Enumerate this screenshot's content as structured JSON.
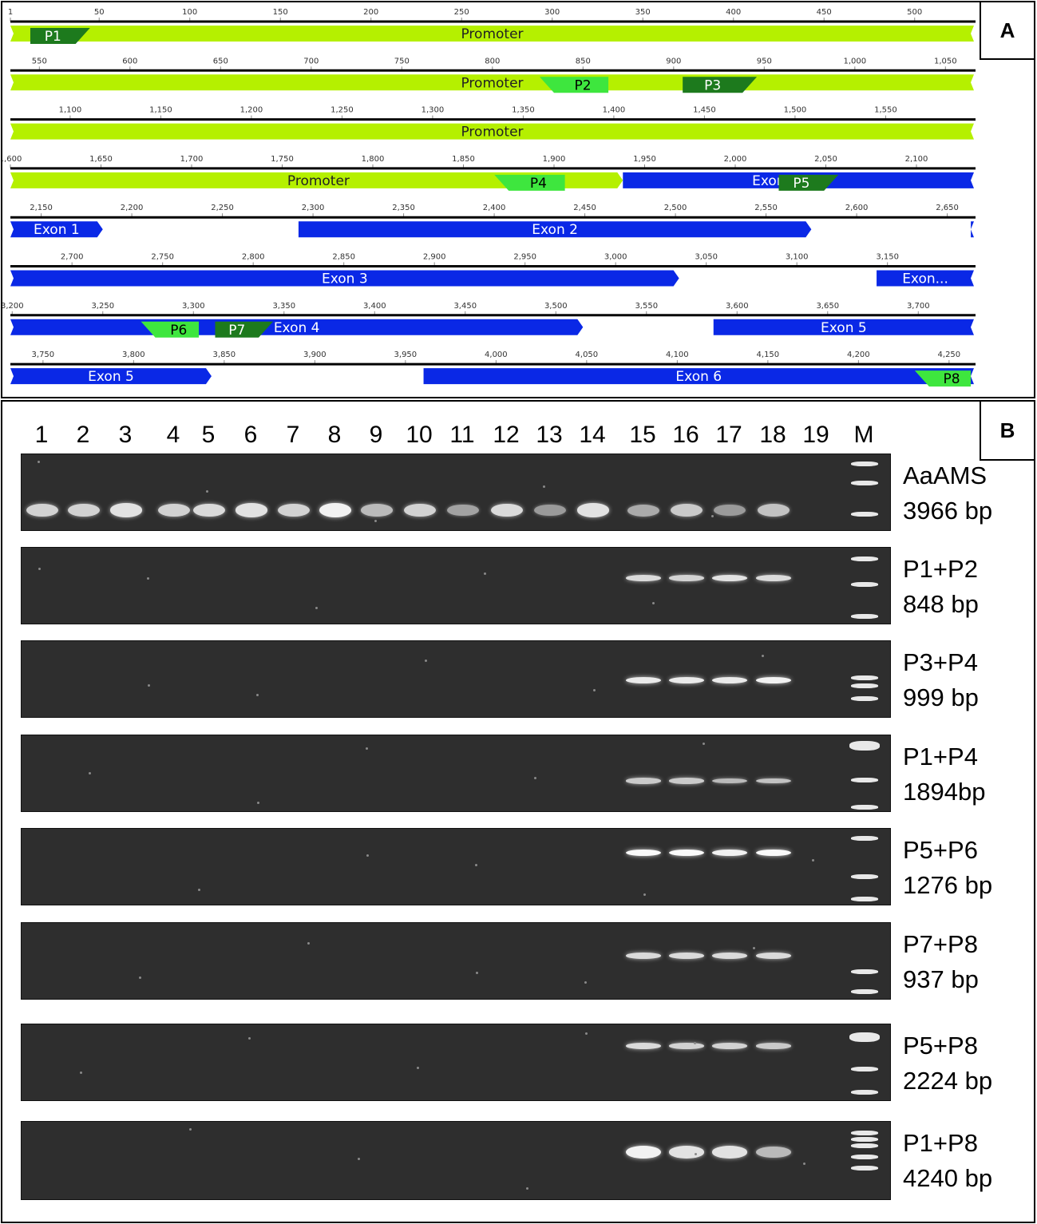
{
  "panel_a": {
    "letter": "A",
    "rows": [
      {
        "ticks": [
          {
            "v": 1,
            "t": "1"
          },
          {
            "v": 50,
            "t": "50"
          },
          {
            "v": 100,
            "t": "100"
          },
          {
            "v": 150,
            "t": "150"
          },
          {
            "v": 200,
            "t": "200"
          },
          {
            "v": 250,
            "t": "250"
          },
          {
            "v": 300,
            "t": "300"
          },
          {
            "v": 350,
            "t": "350"
          },
          {
            "v": 400,
            "t": "400"
          },
          {
            "v": 450,
            "t": "450"
          },
          {
            "v": 500,
            "t": "500"
          }
        ]
      },
      {
        "ticks": [
          {
            "v": 550,
            "t": "550"
          },
          {
            "v": 600,
            "t": "600"
          },
          {
            "v": 650,
            "t": "650"
          },
          {
            "v": 700,
            "t": "700"
          },
          {
            "v": 750,
            "t": "750"
          },
          {
            "v": 800,
            "t": "800"
          },
          {
            "v": 850,
            "t": "850"
          },
          {
            "v": 900,
            "t": "900"
          },
          {
            "v": 950,
            "t": "950"
          },
          {
            "v": 1000,
            "t": "1,000"
          },
          {
            "v": 1050,
            "t": "1,050"
          }
        ]
      },
      {
        "ticks": [
          {
            "v": 1100,
            "t": "1,100"
          },
          {
            "v": 1150,
            "t": "1,150"
          },
          {
            "v": 1200,
            "t": "1,200"
          },
          {
            "v": 1250,
            "t": "1,250"
          },
          {
            "v": 1300,
            "t": "1,300"
          },
          {
            "v": 1350,
            "t": "1,350"
          },
          {
            "v": 1400,
            "t": "1,400"
          },
          {
            "v": 1450,
            "t": "1,450"
          },
          {
            "v": 1500,
            "t": "1,500"
          },
          {
            "v": 1550,
            "t": "1,550"
          }
        ]
      },
      {
        "ticks": [
          {
            "v": 1600,
            "t": "1,600"
          },
          {
            "v": 1650,
            "t": "1,650"
          },
          {
            "v": 1700,
            "t": "1,700"
          },
          {
            "v": 1750,
            "t": "1,750"
          },
          {
            "v": 1800,
            "t": "1,800"
          },
          {
            "v": 1850,
            "t": "1,850"
          },
          {
            "v": 1900,
            "t": "1,900"
          },
          {
            "v": 1950,
            "t": "1,950"
          },
          {
            "v": 2000,
            "t": "2,000"
          },
          {
            "v": 2050,
            "t": "2,050"
          },
          {
            "v": 2100,
            "t": "2,100"
          }
        ]
      },
      {
        "ticks": [
          {
            "v": 2150,
            "t": "2,150"
          },
          {
            "v": 2200,
            "t": "2,200"
          },
          {
            "v": 2250,
            "t": "2,250"
          },
          {
            "v": 2300,
            "t": "2,300"
          },
          {
            "v": 2350,
            "t": "2,350"
          },
          {
            "v": 2400,
            "t": "2,400"
          },
          {
            "v": 2450,
            "t": "2,450"
          },
          {
            "v": 2500,
            "t": "2,500"
          },
          {
            "v": 2550,
            "t": "2,550"
          },
          {
            "v": 2600,
            "t": "2,600"
          },
          {
            "v": 2650,
            "t": "2,650"
          }
        ]
      },
      {
        "ticks": [
          {
            "v": 2700,
            "t": "2,700"
          },
          {
            "v": 2750,
            "t": "2,750"
          },
          {
            "v": 2800,
            "t": "2,800"
          },
          {
            "v": 2850,
            "t": "2,850"
          },
          {
            "v": 2900,
            "t": "2,900"
          },
          {
            "v": 2950,
            "t": "2,950"
          },
          {
            "v": 3000,
            "t": "3,000"
          },
          {
            "v": 3050,
            "t": "3,050"
          },
          {
            "v": 3100,
            "t": "3,100"
          },
          {
            "v": 3150,
            "t": "3,150"
          }
        ]
      },
      {
        "ticks": [
          {
            "v": 3200,
            "t": "3,200"
          },
          {
            "v": 3250,
            "t": "3,250"
          },
          {
            "v": 3300,
            "t": "3,300"
          },
          {
            "v": 3350,
            "t": "3,350"
          },
          {
            "v": 3400,
            "t": "3,400"
          },
          {
            "v": 3450,
            "t": "3,450"
          },
          {
            "v": 3500,
            "t": "3,500"
          },
          {
            "v": 3550,
            "t": "3,550"
          },
          {
            "v": 3600,
            "t": "3,600"
          },
          {
            "v": 3650,
            "t": "3,650"
          },
          {
            "v": 3700,
            "t": "3,700"
          }
        ]
      },
      {
        "ticks": [
          {
            "v": 3750,
            "t": "3,750"
          },
          {
            "v": 3800,
            "t": "3,800"
          },
          {
            "v": 3850,
            "t": "3,850"
          },
          {
            "v": 3900,
            "t": "3,900"
          },
          {
            "v": 3950,
            "t": "3,950"
          },
          {
            "v": 4000,
            "t": "4,000"
          },
          {
            "v": 4050,
            "t": "4,050"
          },
          {
            "v": 4100,
            "t": "4,100"
          },
          {
            "v": 4150,
            "t": "4,150"
          },
          {
            "v": 4200,
            "t": "4,200"
          },
          {
            "v": 4250,
            "t": "4,250"
          }
        ]
      }
    ],
    "features": [
      {
        "row": 0,
        "start": 1,
        "end": 533,
        "label": "Promoter",
        "type": "promoter"
      },
      {
        "row": 1,
        "start": 534,
        "end": 1066,
        "label": "Promoter",
        "type": "promoter"
      },
      {
        "row": 2,
        "start": 1067,
        "end": 1599,
        "label": "Promoter",
        "type": "promoter"
      },
      {
        "row": 3,
        "start": 1600,
        "end": 1937,
        "label": "Promoter",
        "type": "promoter",
        "label_at": 1770
      },
      {
        "row": 3,
        "start": 1938,
        "end": 2132,
        "label": "Exon 1",
        "type": "exon",
        "label_at": 2022
      },
      {
        "row": 4,
        "start": 2133,
        "end": 2183,
        "label": "Exon 1",
        "type": "exon"
      },
      {
        "row": 4,
        "start": 2292,
        "end": 2574,
        "label": "Exon 2",
        "type": "exon"
      },
      {
        "row": 4,
        "start": 2663,
        "end": 2665,
        "label": "",
        "type": "exon"
      },
      {
        "row": 5,
        "start": 2666,
        "end": 3034,
        "label": "Exon 3",
        "type": "exon"
      },
      {
        "row": 5,
        "start": 3144,
        "end": 3198,
        "label": "Exon...",
        "type": "exon"
      },
      {
        "row": 6,
        "start": 3199,
        "end": 3514,
        "label": "Exon 4",
        "type": "exon"
      },
      {
        "row": 6,
        "start": 3587,
        "end": 3731,
        "label": "Exon 5",
        "type": "exon"
      },
      {
        "row": 7,
        "start": 3732,
        "end": 3842,
        "label": "Exon 5",
        "type": "exon"
      },
      {
        "row": 7,
        "start": 3960,
        "end": 4264,
        "label": "Exon 6",
        "type": "exon"
      }
    ],
    "primers": [
      {
        "name": "P1",
        "row": 0,
        "start": 12,
        "end": 37,
        "dir": "forward",
        "shade": "dark"
      },
      {
        "name": "P2",
        "row": 1,
        "start": 834,
        "end": 864,
        "dir": "reverse",
        "shade": "light"
      },
      {
        "name": "P3",
        "row": 1,
        "start": 905,
        "end": 938,
        "dir": "forward",
        "shade": "dark"
      },
      {
        "name": "P4",
        "row": 3,
        "start": 1875,
        "end": 1906,
        "dir": "reverse",
        "shade": "light"
      },
      {
        "name": "P5",
        "row": 3,
        "start": 2024,
        "end": 2049,
        "dir": "forward",
        "shade": "dark"
      },
      {
        "name": "P6",
        "row": 6,
        "start": 3279,
        "end": 3303,
        "dir": "reverse",
        "shade": "light"
      },
      {
        "name": "P7",
        "row": 6,
        "start": 3312,
        "end": 3336,
        "dir": "forward",
        "shade": "dark"
      },
      {
        "name": "P8",
        "row": 7,
        "start": 4239,
        "end": 4262,
        "dir": "reverse",
        "shade": "light"
      }
    ]
  },
  "panel_b": {
    "letter": "B",
    "lanes": [
      "1",
      "2",
      "3",
      "4",
      "5",
      "6",
      "7",
      "8",
      "9",
      "10",
      "11",
      "12",
      "13",
      "14",
      "15",
      "16",
      "17",
      "18",
      "19",
      "M"
    ],
    "gels": [
      {
        "target": "AaAMS",
        "size": "3966 bp",
        "intensity": [
          0.75,
          0.75,
          0.85,
          0.75,
          0.8,
          0.85,
          0.75,
          0.95,
          0.6,
          0.75,
          0.45,
          0.8,
          0.4,
          0.85,
          0.5,
          0.7,
          0.4,
          0.65,
          0,
          0
        ]
      },
      {
        "target": "P1+P2",
        "size": "848 bp",
        "intensity": [
          0,
          0,
          0,
          0,
          0,
          0,
          0,
          0,
          0,
          0,
          0,
          0,
          0,
          0,
          0.8,
          0.75,
          0.85,
          0.8,
          0,
          0
        ]
      },
      {
        "target": "P3+P4",
        "size": "999 bp",
        "intensity": [
          0,
          0,
          0,
          0,
          0,
          0,
          0,
          0,
          0,
          0,
          0,
          0,
          0,
          0,
          0.9,
          0.9,
          0.9,
          0.95,
          0,
          0
        ]
      },
      {
        "target": "P1+P4",
        "size": "1894bp",
        "intensity": [
          0,
          0,
          0,
          0,
          0,
          0,
          0,
          0,
          0,
          0,
          0,
          0,
          0,
          0,
          0.7,
          0.7,
          0.6,
          0.65,
          0,
          0
        ]
      },
      {
        "target": "P5+P6",
        "size": "1276 bp",
        "intensity": [
          0,
          0,
          0,
          0,
          0,
          0,
          0,
          0,
          0,
          0,
          0,
          0,
          0,
          0,
          1,
          1,
          0.95,
          1,
          0,
          0
        ]
      },
      {
        "target": "P7+P8",
        "size": "937 bp",
        "intensity": [
          0,
          0,
          0,
          0,
          0,
          0,
          0,
          0,
          0,
          0,
          0,
          0,
          0,
          0,
          0.8,
          0.8,
          0.8,
          0.8,
          0,
          0
        ]
      },
      {
        "target": "P5+P8",
        "size": "2224 bp",
        "intensity": [
          0,
          0,
          0,
          0,
          0,
          0,
          0,
          0,
          0,
          0,
          0,
          0,
          0,
          0,
          0.8,
          0.75,
          0.75,
          0.7,
          0,
          0
        ]
      },
      {
        "target": "P1+P8",
        "size": "4240 bp",
        "intensity": [
          0,
          0,
          0,
          0,
          0,
          0,
          0,
          0,
          0,
          0,
          0,
          0,
          0,
          0,
          0.95,
          0.85,
          0.85,
          0.6,
          0,
          0
        ]
      }
    ]
  },
  "colors": {
    "promoter": "#b5f000",
    "exon": "#0a28e6",
    "primer_dark": "#1d7a1d",
    "primer_light": "#3ee63e",
    "gel_bg": "#2e2e2e",
    "band": "#f2f2f2"
  }
}
